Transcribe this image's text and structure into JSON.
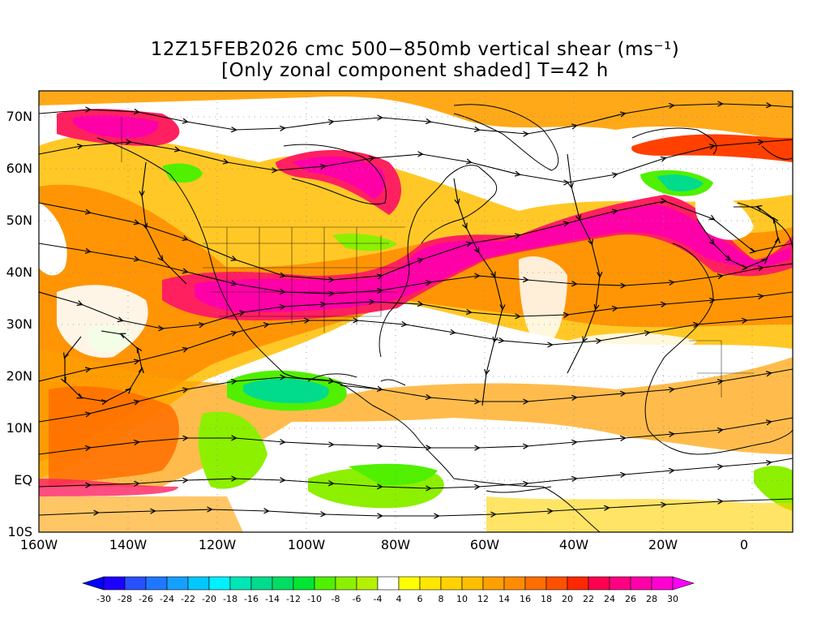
{
  "title": {
    "line1": "12Z15FEB2026 cmc 500−850mb vertical shear (ms⁻¹)",
    "line2": "[Only zonal component shaded] T=42 h"
  },
  "map": {
    "lat_labels": [
      "70N",
      "60N",
      "50N",
      "40N",
      "30N",
      "20N",
      "10N",
      "EQ",
      "10S"
    ],
    "lon_labels": [
      "160W",
      "140W",
      "120W",
      "100W",
      "80W",
      "60W",
      "40W",
      "20W",
      "0"
    ],
    "lon_range": [
      -160,
      10
    ],
    "lat_range": [
      -10,
      75
    ]
  },
  "colorbar": {
    "labels": [
      "-30",
      "-28",
      "-26",
      "-24",
      "-22",
      "-20",
      "-18",
      "-16",
      "-14",
      "-12",
      "-10",
      "-8",
      "-6",
      "-4",
      "4",
      "6",
      "8",
      "10",
      "12",
      "14",
      "16",
      "18",
      "20",
      "22",
      "24",
      "26",
      "28",
      "30"
    ],
    "colors": [
      "#1e00ff",
      "#2850ff",
      "#1e78ff",
      "#14a0ff",
      "#00c8ff",
      "#00f0ff",
      "#00e6b4",
      "#00dc8c",
      "#00dc64",
      "#00e632",
      "#50f000",
      "#8cf000",
      "#b4f000",
      "#ffffff",
      "#ffff00",
      "#ffe600",
      "#ffd200",
      "#ffbe00",
      "#ffa000",
      "#ff8c00",
      "#ff6e00",
      "#ff5000",
      "#ff2800",
      "#ff0050",
      "#ff0082",
      "#ff00aa",
      "#ff00d2"
    ],
    "low_color": "#0000ff",
    "high_color": "#ff00ff"
  }
}
